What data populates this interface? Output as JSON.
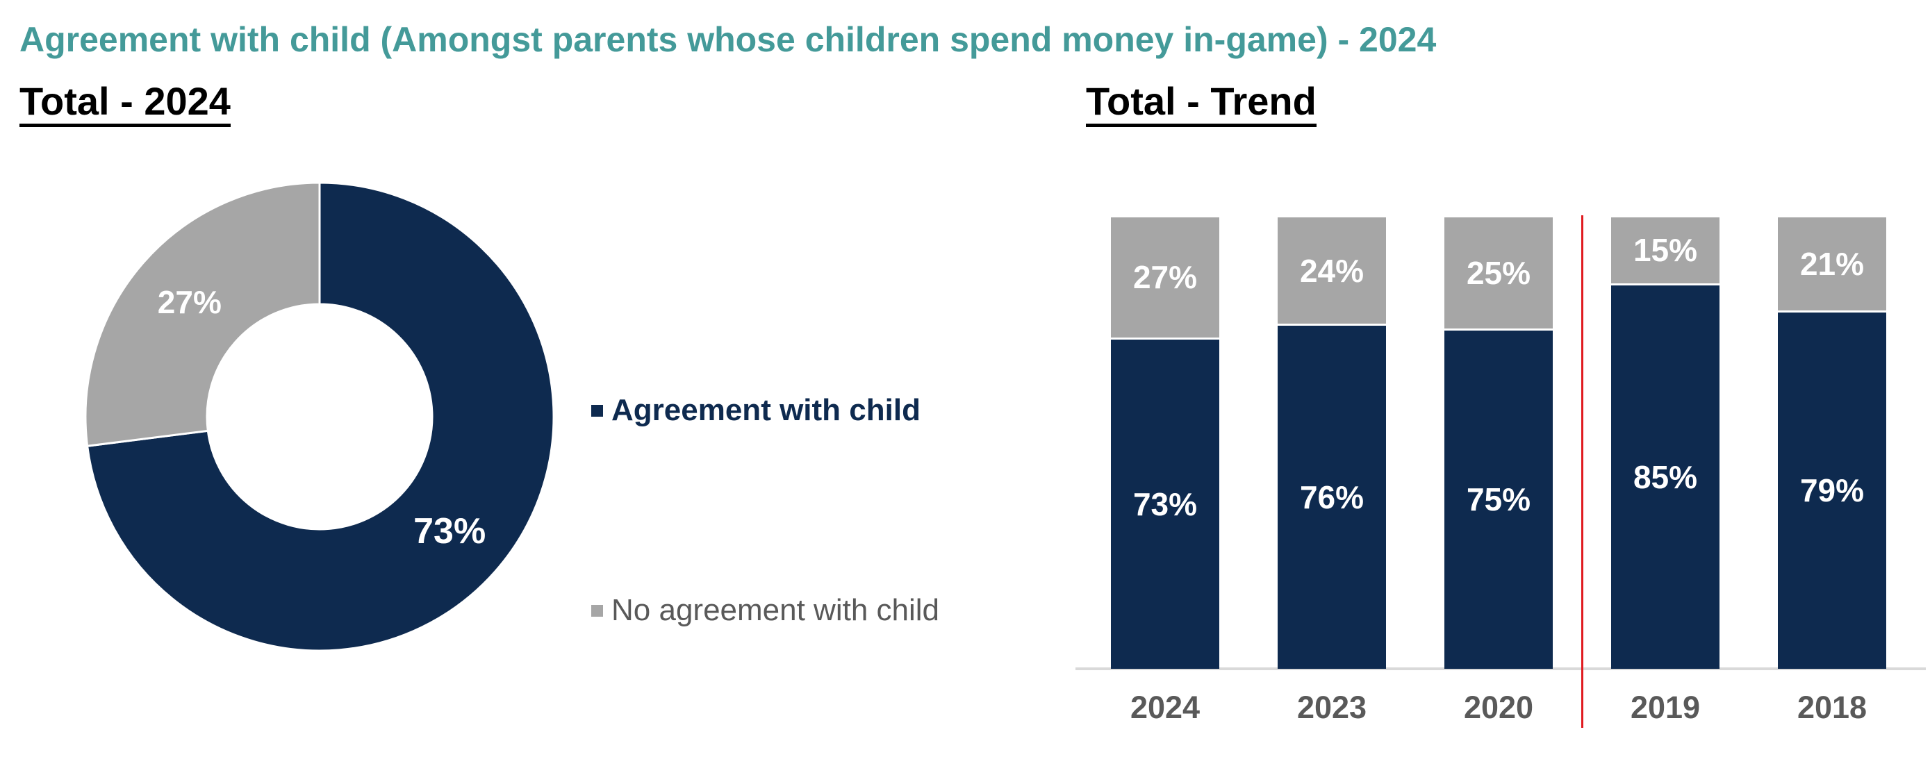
{
  "page": {
    "title": "Agreement with child (Amongst parents whose children spend money in-game) - 2024",
    "left_heading": "Total - 2024",
    "right_heading": "Total - Trend"
  },
  "colors": {
    "title_teal": "#449a99",
    "navy": "#0e2a4f",
    "gray": "#a6a6a6",
    "text_gray": "#595959",
    "axis_gray": "#d9d9d9",
    "divider_red": "#e01b20",
    "value_label_white": "#ffffff"
  },
  "legend": {
    "items": [
      {
        "label": "Agreement with child",
        "color": "#0e2a4f",
        "bold": true
      },
      {
        "label": "No agreement with child",
        "color": "#a6a6a6",
        "bold": false
      }
    ]
  },
  "chart_data": [
    {
      "type": "pie",
      "subtype": "donut",
      "title": "Total - 2024",
      "labels": [
        "Agreement with child",
        "No agreement with child"
      ],
      "values": [
        73,
        27
      ],
      "value_labels": [
        "73%",
        "27%"
      ],
      "colors": [
        "#0e2a4f",
        "#a6a6a6"
      ],
      "start_angle_deg": 0,
      "direction": "clockwise",
      "hole_ratio": 0.48,
      "legend_position": "right"
    },
    {
      "type": "bar",
      "subtype": "stacked-100-percent",
      "title": "Total - Trend",
      "categories": [
        "2024",
        "2023",
        "2020",
        "2019",
        "2018"
      ],
      "series": [
        {
          "name": "Agreement with child",
          "color": "#0e2a4f",
          "values": [
            73,
            76,
            75,
            85,
            79
          ]
        },
        {
          "name": "No agreement with child",
          "color": "#a6a6a6",
          "values": [
            27,
            24,
            25,
            15,
            21
          ]
        }
      ],
      "value_suffix": "%",
      "ylim": [
        0,
        100
      ],
      "gridlines": false,
      "axis_baseline": true,
      "red_divider_between": [
        "2020",
        "2019"
      ]
    }
  ]
}
